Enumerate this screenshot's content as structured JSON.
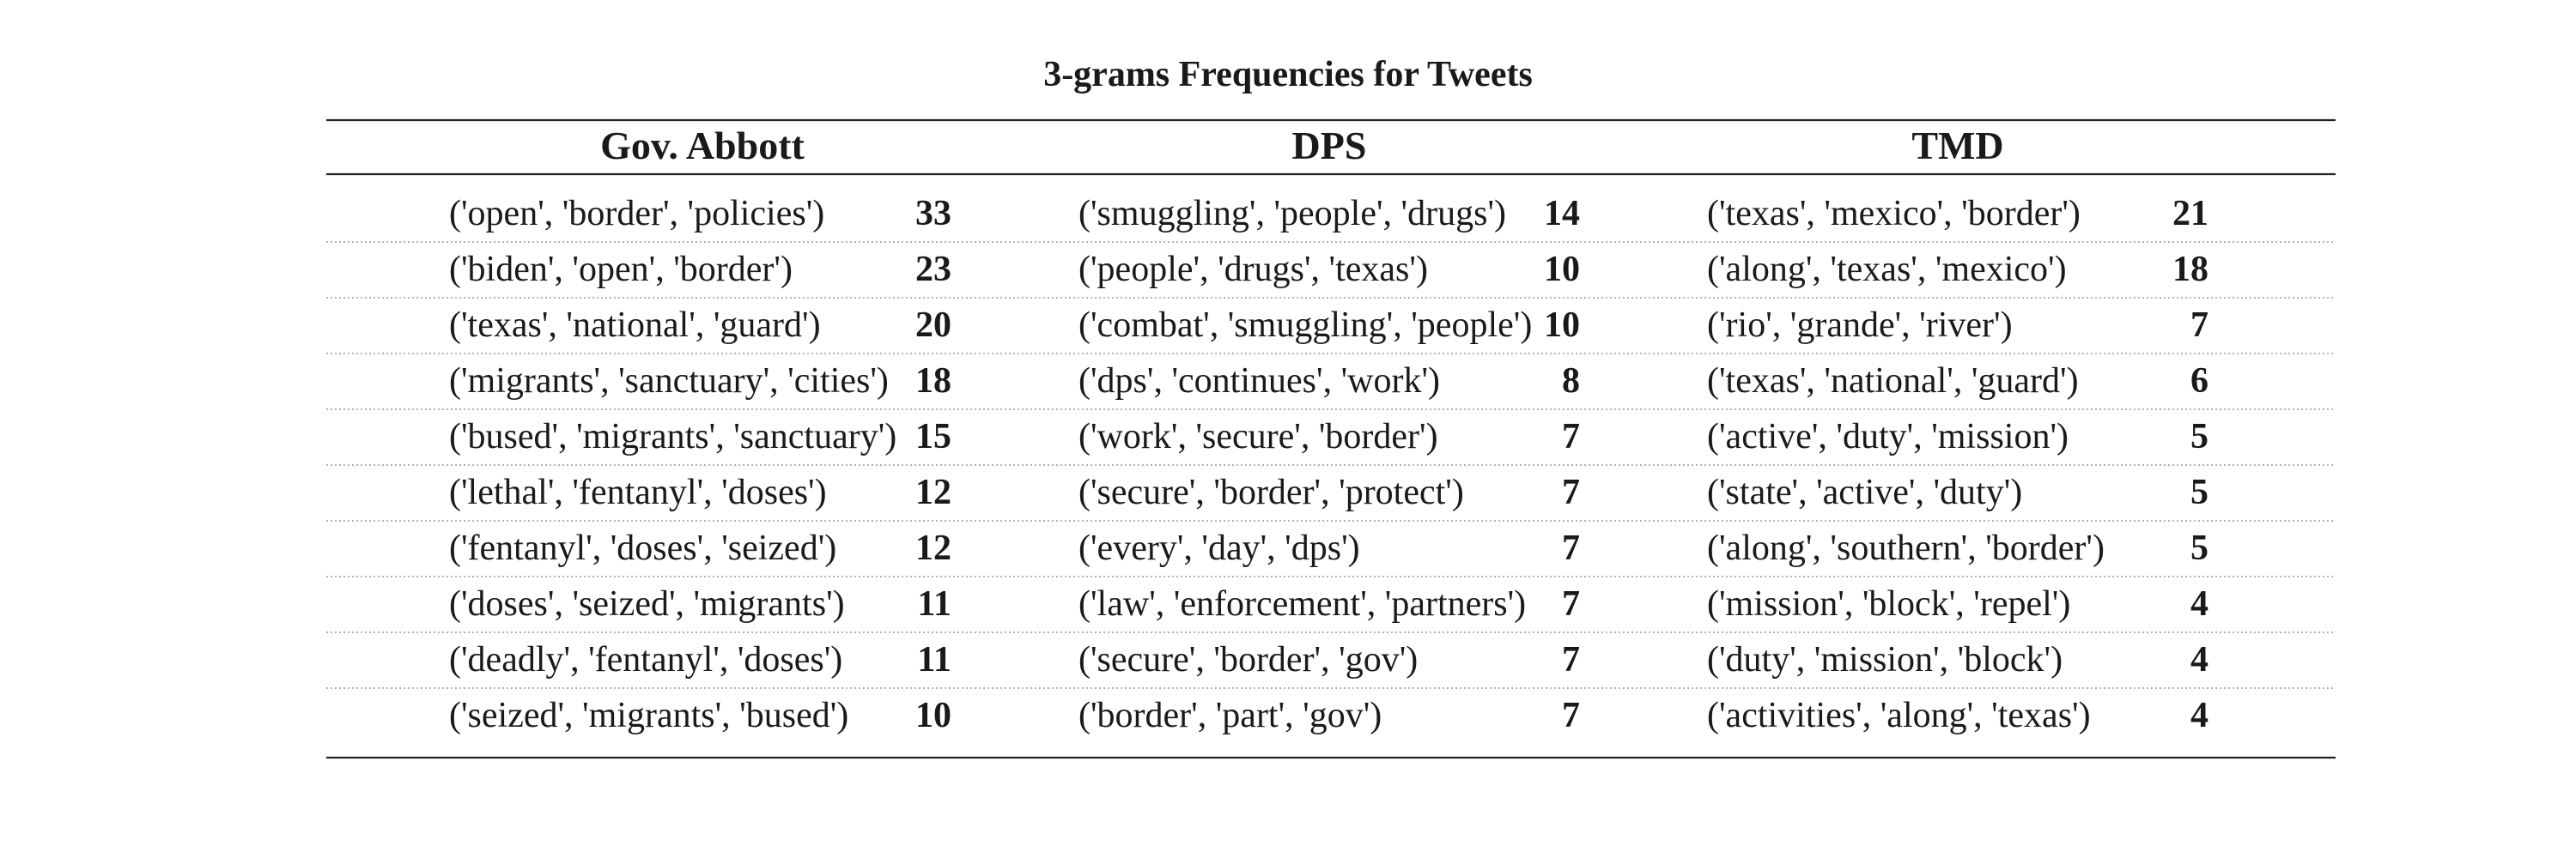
{
  "chart_data": {
    "type": "table",
    "title": "3-grams Frequencies for Tweets",
    "columns": [
      {
        "name": "Gov. Abbott",
        "rows": [
          {
            "label": "('open', 'border', 'policies')",
            "value": 33
          },
          {
            "label": "('biden', 'open', 'border')",
            "value": 23
          },
          {
            "label": "('texas', 'national', 'guard')",
            "value": 20
          },
          {
            "label": "('migrants', 'sanctuary', 'cities')",
            "value": 18
          },
          {
            "label": "('bused', 'migrants', 'sanctuary')",
            "value": 15
          },
          {
            "label": "('lethal', 'fentanyl', 'doses')",
            "value": 12
          },
          {
            "label": "('fentanyl', 'doses', 'seized')",
            "value": 12
          },
          {
            "label": "('doses', 'seized', 'migrants')",
            "value": 11
          },
          {
            "label": "('deadly', 'fentanyl', 'doses')",
            "value": 11
          },
          {
            "label": "('seized', 'migrants', 'bused')",
            "value": 10
          }
        ]
      },
      {
        "name": "DPS",
        "rows": [
          {
            "label": "('smuggling', 'people', 'drugs')",
            "value": 14
          },
          {
            "label": "('people', 'drugs', 'texas')",
            "value": 10
          },
          {
            "label": "('combat', 'smuggling', 'people')",
            "value": 10
          },
          {
            "label": "('dps', 'continues', 'work')",
            "value": 8
          },
          {
            "label": "('work', 'secure', 'border')",
            "value": 7
          },
          {
            "label": "('secure', 'border', 'protect')",
            "value": 7
          },
          {
            "label": "('every', 'day', 'dps')",
            "value": 7
          },
          {
            "label": "('law', 'enforcement', 'partners')",
            "value": 7
          },
          {
            "label": "('secure', 'border', 'gov')",
            "value": 7
          },
          {
            "label": "('border', 'part', 'gov')",
            "value": 7
          }
        ]
      },
      {
        "name": "TMD",
        "rows": [
          {
            "label": "('texas', 'mexico', 'border')",
            "value": 21
          },
          {
            "label": "('along', 'texas', 'mexico')",
            "value": 18
          },
          {
            "label": "('rio', 'grande', 'river')",
            "value": 7
          },
          {
            "label": "('texas', 'national', 'guard')",
            "value": 6
          },
          {
            "label": "('active', 'duty', 'mission')",
            "value": 5
          },
          {
            "label": "('state', 'active', 'duty')",
            "value": 5
          },
          {
            "label": "('along', 'southern', 'border')",
            "value": 5
          },
          {
            "label": "('mission', 'block', 'repel')",
            "value": 4
          },
          {
            "label": "('duty', 'mission', 'block')",
            "value": 4
          },
          {
            "label": "('activities', 'along', 'texas')",
            "value": 4
          }
        ]
      }
    ],
    "colors": {
      "text": "#1a1a1a",
      "rule": "#222222",
      "dotted_rule": "#9a9a9a"
    }
  }
}
